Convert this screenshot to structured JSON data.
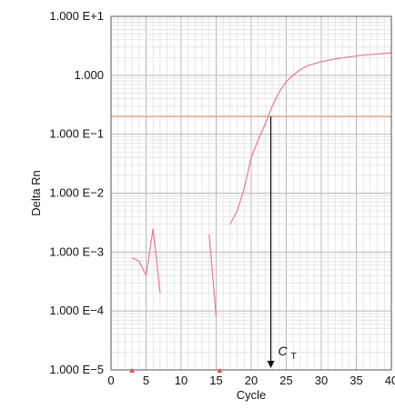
{
  "chart_data": {
    "type": "line",
    "xlabel": "Cycle",
    "ylabel": "Delta Rn",
    "xlim": [
      0,
      40
    ],
    "ylim": [
      1e-05,
      10
    ],
    "yscale": "log",
    "x_ticks": [
      0,
      5,
      10,
      15,
      20,
      25,
      30,
      35,
      40
    ],
    "x_tick_labels": [
      "0",
      "5",
      "10",
      "15",
      "20",
      "25",
      "30",
      "35",
      "40"
    ],
    "y_ticks": [
      10,
      1,
      0.1,
      0.01,
      0.001,
      0.0001,
      1e-05
    ],
    "y_tick_labels": [
      "1.000 E+1",
      "1.000",
      "1.000 E−1",
      "1.000 E−2",
      "1.000 E−3",
      "1.000 E−4",
      "1.000 E−5"
    ],
    "grid": true,
    "threshold": {
      "value": 0.2,
      "color": "#f0a080"
    },
    "ct_marker": {
      "x": 22.8,
      "label_main": "C",
      "label_sub": "T",
      "color": "#111111"
    },
    "series": [
      {
        "color": "#e8809a",
        "segments": [
          {
            "x": [
              3,
              4,
              5,
              6,
              7
            ],
            "y": [
              0.0008,
              0.0007,
              0.0004,
              0.0025,
              0.0002
            ]
          },
          {
            "x": [
              14,
              15
            ],
            "y": [
              0.002,
              8e-05
            ]
          },
          {
            "x": [
              17,
              18,
              19,
              20,
              21,
              22,
              23,
              24,
              25,
              26,
              27,
              28,
              30,
              32,
              34,
              36,
              38,
              40
            ],
            "y": [
              0.003,
              0.005,
              0.012,
              0.04,
              0.08,
              0.15,
              0.3,
              0.52,
              0.78,
              1.0,
              1.25,
              1.45,
              1.7,
              1.9,
              2.05,
              2.2,
              2.3,
              2.4
            ]
          }
        ]
      }
    ],
    "axis_marks": {
      "x": [
        3,
        15.5
      ],
      "color": "#e05050"
    }
  }
}
